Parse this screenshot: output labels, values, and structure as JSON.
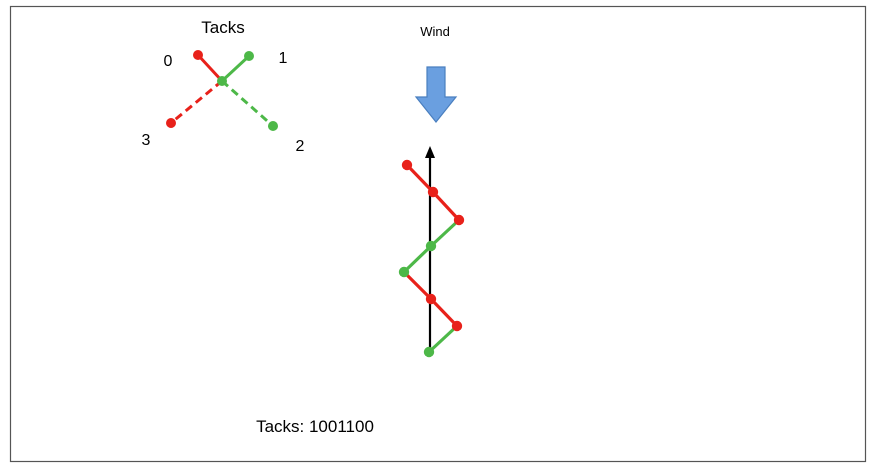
{
  "diagram": {
    "title": "Tacks",
    "wind_label": "Wind",
    "tacks_caption": "Tacks: 1001100",
    "legend_labels": [
      "0",
      "1",
      "2",
      "3"
    ],
    "colors": {
      "red": "#e8211a",
      "green": "#4db848",
      "arrow_fill": "#6a9fe0",
      "arrow_stroke": "#4a7fbf",
      "border": "#555555",
      "axis": "#000000"
    }
  }
}
